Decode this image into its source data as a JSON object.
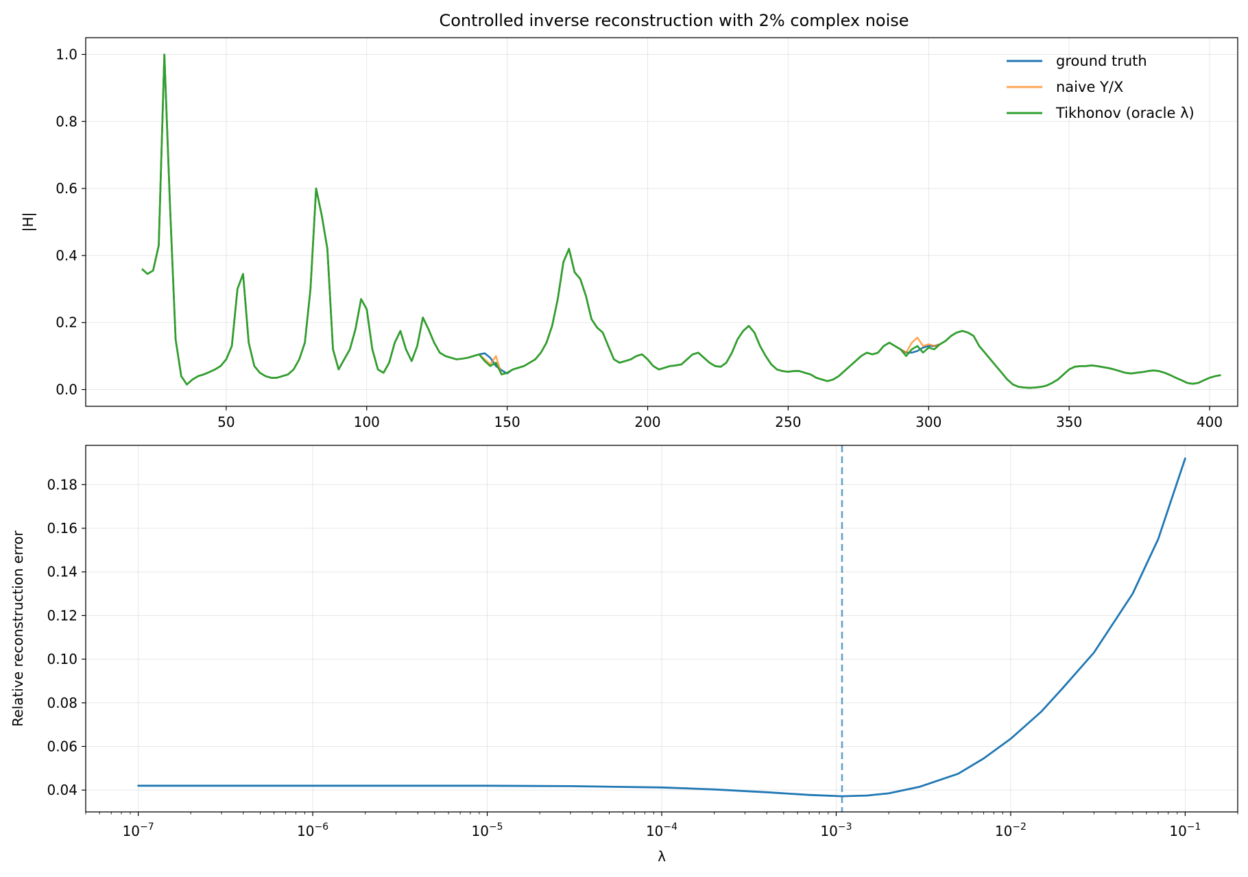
{
  "chart_data": [
    {
      "type": "line",
      "title": "Controlled inverse reconstruction with 2% complex noise",
      "xlabel": "",
      "ylabel": "|H|",
      "xlim": [
        0,
        410
      ],
      "ylim": [
        -0.05,
        1.05
      ],
      "xticks": [
        50,
        100,
        150,
        200,
        250,
        300,
        350,
        400
      ],
      "yticks": [
        0.0,
        0.2,
        0.4,
        0.6,
        0.8,
        1.0
      ],
      "ytick_labels": [
        "0.0",
        "0.2",
        "0.4",
        "0.6",
        "0.8",
        "1.0"
      ],
      "grid": true,
      "legend": {
        "placement": "top-right",
        "frame": false
      },
      "x_start": 20,
      "x_step": 2,
      "series": [
        {
          "name": "ground truth",
          "color": "#1f77b4",
          "values": [
            0.36,
            0.345,
            0.355,
            0.43,
            1.0,
            0.55,
            0.15,
            0.04,
            0.015,
            0.03,
            0.04,
            0.045,
            0.052,
            0.06,
            0.07,
            0.09,
            0.13,
            0.3,
            0.345,
            0.14,
            0.07,
            0.05,
            0.04,
            0.035,
            0.035,
            0.04,
            0.045,
            0.06,
            0.09,
            0.14,
            0.3,
            0.6,
            0.52,
            0.42,
            0.12,
            0.06,
            0.09,
            0.12,
            0.18,
            0.27,
            0.24,
            0.12,
            0.06,
            0.05,
            0.08,
            0.14,
            0.175,
            0.12,
            0.085,
            0.13,
            0.215,
            0.18,
            0.14,
            0.11,
            0.1,
            0.095,
            0.09,
            0.092,
            0.095,
            0.1,
            0.105,
            0.108,
            0.095,
            0.07,
            0.058,
            0.048,
            0.06,
            0.065,
            0.07,
            0.08,
            0.09,
            0.11,
            0.14,
            0.19,
            0.27,
            0.38,
            0.42,
            0.35,
            0.33,
            0.28,
            0.21,
            0.185,
            0.17,
            0.13,
            0.09,
            0.08,
            0.085,
            0.09,
            0.1,
            0.105,
            0.09,
            0.07,
            0.06,
            0.065,
            0.07,
            0.072,
            0.075,
            0.09,
            0.105,
            0.11,
            0.095,
            0.08,
            0.07,
            0.068,
            0.08,
            0.11,
            0.15,
            0.175,
            0.19,
            0.17,
            0.13,
            0.1,
            0.075,
            0.06,
            0.055,
            0.053,
            0.055,
            0.055,
            0.05,
            0.045,
            0.035,
            0.03,
            0.025,
            0.03,
            0.04,
            0.055,
            0.07,
            0.085,
            0.1,
            0.11,
            0.105,
            0.11,
            0.13,
            0.14,
            0.13,
            0.12,
            0.11,
            0.11,
            0.115,
            0.125,
            0.13,
            0.13,
            0.135,
            0.145,
            0.16,
            0.17,
            0.175,
            0.17,
            0.16,
            0.13,
            0.11,
            0.09,
            0.07,
            0.05,
            0.03,
            0.015,
            0.008,
            0.006,
            0.005,
            0.006,
            0.008,
            0.012,
            0.02,
            0.03,
            0.045,
            0.06,
            0.068,
            0.07,
            0.07,
            0.072,
            0.07,
            0.067,
            0.064,
            0.06,
            0.055,
            0.05,
            0.048,
            0.05,
            0.052,
            0.055,
            0.057,
            0.055,
            0.05,
            0.043,
            0.035,
            0.028,
            0.02,
            0.017,
            0.02,
            0.028,
            0.035,
            0.04,
            0.043
          ]
        },
        {
          "name": "naive Y/X",
          "color": "#ff7f0e",
          "opacity": 0.7,
          "values": [
            0.36,
            0.345,
            0.355,
            0.43,
            1.0,
            0.55,
            0.15,
            0.04,
            0.015,
            0.03,
            0.04,
            0.045,
            0.052,
            0.06,
            0.07,
            0.09,
            0.13,
            0.3,
            0.345,
            0.14,
            0.07,
            0.05,
            0.04,
            0.035,
            0.035,
            0.04,
            0.045,
            0.06,
            0.09,
            0.14,
            0.3,
            0.6,
            0.52,
            0.42,
            0.12,
            0.06,
            0.09,
            0.12,
            0.18,
            0.27,
            0.24,
            0.12,
            0.06,
            0.05,
            0.08,
            0.14,
            0.175,
            0.12,
            0.085,
            0.13,
            0.215,
            0.18,
            0.14,
            0.11,
            0.1,
            0.095,
            0.09,
            0.092,
            0.095,
            0.1,
            0.105,
            0.09,
            0.075,
            0.1,
            0.045,
            0.05,
            0.06,
            0.065,
            0.07,
            0.08,
            0.09,
            0.11,
            0.14,
            0.19,
            0.27,
            0.38,
            0.42,
            0.35,
            0.33,
            0.28,
            0.21,
            0.185,
            0.17,
            0.13,
            0.09,
            0.08,
            0.085,
            0.09,
            0.1,
            0.105,
            0.09,
            0.07,
            0.06,
            0.065,
            0.07,
            0.072,
            0.075,
            0.09,
            0.105,
            0.11,
            0.095,
            0.08,
            0.07,
            0.068,
            0.08,
            0.11,
            0.15,
            0.175,
            0.19,
            0.17,
            0.13,
            0.1,
            0.075,
            0.06,
            0.055,
            0.053,
            0.055,
            0.055,
            0.05,
            0.045,
            0.035,
            0.03,
            0.025,
            0.03,
            0.04,
            0.055,
            0.07,
            0.085,
            0.1,
            0.11,
            0.105,
            0.11,
            0.13,
            0.14,
            0.13,
            0.12,
            0.11,
            0.14,
            0.155,
            0.13,
            0.135,
            0.13,
            0.135,
            0.145,
            0.16,
            0.17,
            0.175,
            0.17,
            0.16,
            0.13,
            0.11,
            0.09,
            0.07,
            0.05,
            0.03,
            0.015,
            0.008,
            0.006,
            0.005,
            0.006,
            0.008,
            0.012,
            0.02,
            0.03,
            0.045,
            0.06,
            0.068,
            0.07,
            0.07,
            0.072,
            0.07,
            0.067,
            0.064,
            0.06,
            0.055,
            0.05,
            0.048,
            0.05,
            0.052,
            0.055,
            0.057,
            0.055,
            0.05,
            0.043,
            0.035,
            0.028,
            0.02,
            0.017,
            0.02,
            0.028,
            0.035,
            0.04,
            0.043
          ]
        },
        {
          "name": "Tikhonov (oracle λ)",
          "color": "#2ca02c",
          "values": [
            0.36,
            0.345,
            0.355,
            0.43,
            1.0,
            0.55,
            0.15,
            0.04,
            0.015,
            0.03,
            0.04,
            0.045,
            0.052,
            0.06,
            0.07,
            0.09,
            0.13,
            0.3,
            0.345,
            0.14,
            0.07,
            0.05,
            0.04,
            0.035,
            0.035,
            0.04,
            0.045,
            0.06,
            0.09,
            0.14,
            0.3,
            0.6,
            0.52,
            0.42,
            0.12,
            0.06,
            0.09,
            0.12,
            0.18,
            0.27,
            0.24,
            0.12,
            0.06,
            0.05,
            0.08,
            0.14,
            0.175,
            0.12,
            0.085,
            0.13,
            0.215,
            0.18,
            0.14,
            0.11,
            0.1,
            0.095,
            0.09,
            0.092,
            0.095,
            0.1,
            0.105,
            0.085,
            0.07,
            0.08,
            0.045,
            0.05,
            0.06,
            0.065,
            0.07,
            0.08,
            0.09,
            0.11,
            0.14,
            0.19,
            0.27,
            0.38,
            0.42,
            0.35,
            0.33,
            0.28,
            0.21,
            0.185,
            0.17,
            0.13,
            0.09,
            0.08,
            0.085,
            0.09,
            0.1,
            0.105,
            0.09,
            0.07,
            0.06,
            0.065,
            0.07,
            0.072,
            0.075,
            0.09,
            0.105,
            0.11,
            0.095,
            0.08,
            0.07,
            0.068,
            0.08,
            0.11,
            0.15,
            0.175,
            0.19,
            0.17,
            0.13,
            0.1,
            0.075,
            0.06,
            0.055,
            0.053,
            0.055,
            0.055,
            0.05,
            0.045,
            0.035,
            0.03,
            0.025,
            0.03,
            0.04,
            0.055,
            0.07,
            0.085,
            0.1,
            0.11,
            0.105,
            0.11,
            0.13,
            0.14,
            0.13,
            0.12,
            0.1,
            0.12,
            0.13,
            0.11,
            0.125,
            0.12,
            0.135,
            0.145,
            0.16,
            0.17,
            0.175,
            0.17,
            0.16,
            0.13,
            0.11,
            0.09,
            0.07,
            0.05,
            0.03,
            0.015,
            0.008,
            0.006,
            0.005,
            0.006,
            0.008,
            0.012,
            0.02,
            0.03,
            0.045,
            0.06,
            0.068,
            0.07,
            0.07,
            0.072,
            0.07,
            0.067,
            0.064,
            0.06,
            0.055,
            0.05,
            0.048,
            0.05,
            0.052,
            0.055,
            0.057,
            0.055,
            0.05,
            0.043,
            0.035,
            0.028,
            0.02,
            0.017,
            0.02,
            0.028,
            0.035,
            0.04,
            0.043
          ]
        }
      ]
    },
    {
      "type": "line",
      "title": "",
      "xlabel": "λ",
      "ylabel": "Relative reconstruction error",
      "x_scale": "log",
      "xlim": [
        5e-08,
        0.2
      ],
      "ylim": [
        0.03,
        0.198
      ],
      "xticks": [
        1e-07,
        1e-06,
        1e-05,
        0.0001,
        0.001,
        0.01,
        0.1
      ],
      "xtick_labels": [
        {
          "base": "10",
          "exp": "−7"
        },
        {
          "base": "10",
          "exp": "−6"
        },
        {
          "base": "10",
          "exp": "−5"
        },
        {
          "base": "10",
          "exp": "−4"
        },
        {
          "base": "10",
          "exp": "−3"
        },
        {
          "base": "10",
          "exp": "−2"
        },
        {
          "base": "10",
          "exp": "−1"
        }
      ],
      "yticks": [
        0.04,
        0.06,
        0.08,
        0.1,
        0.12,
        0.14,
        0.16,
        0.18
      ],
      "ytick_labels": [
        "0.04",
        "0.06",
        "0.08",
        "0.10",
        "0.12",
        "0.14",
        "0.16",
        "0.18"
      ],
      "grid": true,
      "vline": {
        "x": 0.00108,
        "color": "#1f77b4",
        "style": "dashed"
      },
      "series": [
        {
          "name": "",
          "color": "#1f77b4",
          "x": [
            1e-07,
            1e-06,
            1e-05,
            3e-05,
            0.0001,
            0.0002,
            0.0004,
            0.0007,
            0.00108,
            0.0015,
            0.002,
            0.003,
            0.005,
            0.007,
            0.01,
            0.015,
            0.02,
            0.03,
            0.05,
            0.07,
            0.1
          ],
          "values": [
            0.042,
            0.042,
            0.042,
            0.0418,
            0.0412,
            0.0403,
            0.039,
            0.0378,
            0.0372,
            0.0375,
            0.0385,
            0.0415,
            0.0475,
            0.0545,
            0.0635,
            0.076,
            0.087,
            0.103,
            0.13,
            0.155,
            0.192
          ]
        }
      ]
    }
  ]
}
